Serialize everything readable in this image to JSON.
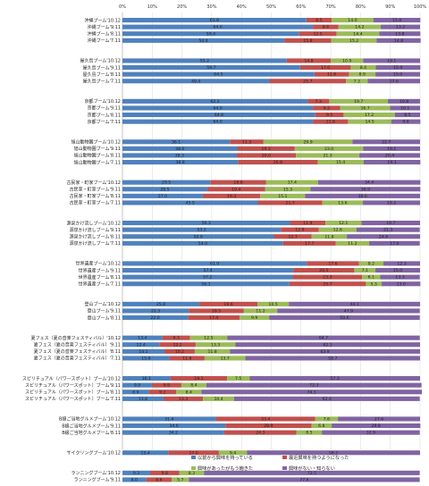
{
  "chart_data": {
    "type": "bar",
    "orientation": "horizontal",
    "stacked": "percent",
    "xlim": [
      0,
      100
    ],
    "x_ticks": [
      "0%",
      "10%",
      "20%",
      "30%",
      "40%",
      "50%",
      "60%",
      "70%",
      "80%",
      "90%",
      "100%"
    ],
    "grid": true,
    "legend_position": "bottom-right",
    "series": [
      {
        "name": "以前から興味を持っている",
        "color": "#4f81bd"
      },
      {
        "name": "最近興味を持つようになった",
        "color": "#c0504d"
      },
      {
        "name": "興味があったがもう飽きた",
        "color": "#9bbb59"
      },
      {
        "name": "興味がない・知らない",
        "color": "#8064a2"
      }
    ],
    "groups": [
      {
        "rows": [
          {
            "label": "沖縄ブーム'10.12",
            "values": [
              61.8,
              8.5,
              14.0,
              15.8
            ]
          },
          {
            "label": "沖縄ブーム'9.11",
            "values": [
              64.0,
              8.6,
              14.2,
              13.2
            ]
          },
          {
            "label": "沖縄ブーム'8.11",
            "values": [
              59.4,
              12.5,
              14.4,
              13.8
            ]
          },
          {
            "label": "沖縄ブーム'7.11",
            "values": [
              54.4,
              15.8,
              15.2,
              14.8
            ]
          }
        ]
      },
      {
        "rows": [
          {
            "label": "屋久島ブーム'10.12",
            "values": [
              55.2,
              14.8,
              10.9,
              19.1
            ]
          },
          {
            "label": "屋久島ブーム'9.11",
            "values": [
              59.7,
              17.0,
              8.4,
              15.0
            ]
          },
          {
            "label": "屋久島ブーム'8.11",
            "values": [
              64.5,
              11.6,
              8.9,
              15.0
            ]
          },
          {
            "label": "屋久島ブーム'7.11",
            "values": [
              49.4,
              25.7,
              7.3,
              17.6
            ]
          }
        ]
      },
      {
        "rows": [
          {
            "label": "京都ブーム'10.12",
            "values": [
              62.2,
              7.3,
              19.7,
              10.8
            ]
          },
          {
            "label": "京都ブーム'9.11",
            "values": [
              64.0,
              9.2,
              16.7,
              10.1
            ]
          },
          {
            "label": "京都ブーム'8.11",
            "values": [
              64.8,
              9.5,
              17.2,
              8.5
            ]
          },
          {
            "label": "京都ブーム'7.11",
            "values": [
              64.0,
              11.8,
              14.5,
              9.8
            ]
          }
        ]
      },
      {
        "rows": [
          {
            "label": "旭山動物園ブーム'10.12",
            "values": [
              36.1,
              11.3,
              29.9,
              22.7
            ]
          },
          {
            "label": "旭山動物園ブーム'9.11",
            "values": [
              38.6,
              19.3,
              23.0,
              19.1
            ]
          },
          {
            "label": "旭山動物園ブーム'8.11",
            "values": [
              38.3,
              20.0,
              21.3,
              20.4
            ]
          },
          {
            "label": "旭山動物園ブーム'7.11",
            "values": [
              38.8,
              26.8,
              15.4,
              19.1
            ]
          }
        ]
      },
      {
        "rows": [
          {
            "label": "古民家・町家ブーム'10.12",
            "values": [
              29.5,
              18.8,
              17.4,
              34.4
            ]
          },
          {
            "label": "古民家・町家ブーム'9.11",
            "values": [
              28.5,
              19.4,
              15.3,
              36.9
            ]
          },
          {
            "label": "古民家・町家ブーム'8.11",
            "values": [
              27.0,
              19.3,
              15.1,
              38.6
            ]
          },
          {
            "label": "古民家・町家ブーム'7.11",
            "values": [
              45.5,
              21.7,
              13.6,
              19.2
            ]
          }
        ]
      },
      {
        "rows": [
          {
            "label": "源泉かけ流しブーム'10.12",
            "values": [
              56.3,
              11.9,
              12.1,
              19.7
            ]
          },
          {
            "label": "源泉かけ流しブーム'9.11",
            "values": [
              53.2,
              12.8,
              12.6,
              21.3
            ]
          },
          {
            "label": "源泉かけ流しブーム'8.11",
            "values": [
              50.9,
              12.7,
              11.8,
              24.6
            ]
          },
          {
            "label": "源泉かけ流しブーム'7.11",
            "values": [
              54.0,
              17.7,
              11.2,
              17.0
            ]
          }
        ]
      },
      {
        "rows": [
          {
            "label": "世界遺産ブーム'10.12",
            "values": [
              61.9,
              17.6,
              8.2,
              12.3
            ]
          },
          {
            "label": "世界遺産ブーム'9.11",
            "values": [
              57.4,
              20.5,
              7.1,
              15.0
            ]
          },
          {
            "label": "世界遺産ブーム'8.11",
            "values": [
              57.2,
              23.3,
              6.1,
              13.3
            ]
          },
          {
            "label": "世界遺産ブーム'7.11",
            "values": [
              56.1,
              25.7,
              5.3,
              13.0
            ]
          }
        ]
      },
      {
        "rows": [
          {
            "label": "登山ブーム'10.12",
            "values": [
              25.8,
              19.6,
              10.5,
              44.1
            ]
          },
          {
            "label": "登山ブーム'9.11",
            "values": [
              22.3,
              18.5,
              11.2,
              47.9
            ]
          },
          {
            "label": "登山ブーム'8.11",
            "values": [
              22.0,
              17.4,
              9.9,
              50.6
            ]
          }
        ]
      },
      {
        "rows": [
          {
            "label": "夏フェス（夏の音楽フェスティバル）'10.12",
            "values": [
              13.4,
              9.3,
              12.5,
              64.7
            ]
          },
          {
            "label": "夏フェス（夏の音楽フェスティバル）'9.11",
            "values": [
              12.4,
              12.2,
              13.3,
              62.1
            ]
          },
          {
            "label": "夏フェス（夏の音楽フェスティバル）'8.11",
            "values": [
              14.1,
              10.2,
              11.8,
              63.9
            ]
          },
          {
            "label": "夏フェス（夏の音楽フェスティバル）'7.11",
            "values": [
              15.8,
              11.8,
              13.7,
              58.7
            ]
          }
        ]
      },
      {
        "rows": [
          {
            "label": "スピリチュアル（パワースポット）ブーム'10.12",
            "values": [
              16.1,
              19.1,
              7.5,
              57.3
            ]
          },
          {
            "label": "スピリチュアル（パワースポット）ブーム'9.11",
            "values": [
              9.9,
              9.9,
              8.4,
              72.3
            ]
          },
          {
            "label": "スピリチュアル（パワースポット）ブーム'8.11",
            "values": [
              8.9,
              9.2,
              8.4,
              74.1
            ]
          },
          {
            "label": "スピリチュアル（パワースポット）ブーム'7.11",
            "values": [
              13.8,
              13.3,
              10.4,
              62.4
            ]
          }
        ]
      },
      {
        "rows": [
          {
            "label": "B級ご当地グルメブーム'10.12",
            "values": [
              31.4,
              33.4,
              7.6,
              27.6
            ]
          },
          {
            "label": "B級ご当地グルメブーム'9.11",
            "values": [
              34.6,
              28.9,
              6.8,
              29.8
            ]
          },
          {
            "label": "B級ご当地グルメブーム'8.11",
            "values": [
              34.2,
              24.3,
              8.5,
              32.9
            ]
          }
        ]
      },
      {
        "rows": [
          {
            "label": "サイクリングブーム'10.12",
            "values": [
              15.4,
              17.0,
              9.4,
              58.2
            ]
          }
        ]
      },
      {
        "rows": [
          {
            "label": "ランニングブーム'10.12",
            "values": [
              9.3,
              9.8,
              8.3,
              72.5
            ]
          },
          {
            "label": "ランニングブーム'9.11",
            "values": [
              8.0,
              8.6,
              5.7,
              77.6
            ]
          }
        ]
      }
    ]
  }
}
